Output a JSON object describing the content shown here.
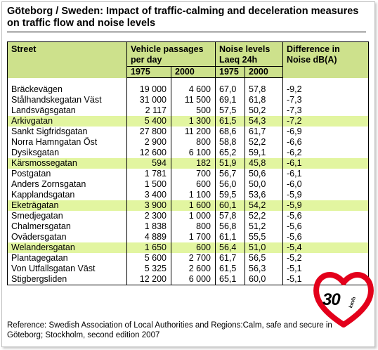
{
  "title": "Göteborg / Sweden: Impact of traffic-calming and deceleration measures on traffic flow and noise levels",
  "headers": {
    "street": "Street",
    "vehicle_passages": "Vehicle passages per day",
    "noise_levels": "Noise levels",
    "noise_sub": "Laeq  24h",
    "difference": "Difference in Noise dB(A)",
    "year_1975": "1975",
    "year_2000": "2000"
  },
  "rows": [
    {
      "street": "Bräckevägen",
      "v1975": "19 000",
      "v2000": "4 600",
      "n1975": "67,0",
      "n2000": "57,8",
      "diff": "-9,2",
      "highlight": false
    },
    {
      "street": "Stålhandskegatan Väst",
      "v1975": "31 000",
      "v2000": "11 500",
      "n1975": "69,1",
      "n2000": "61,8",
      "diff": "-7,3",
      "highlight": false
    },
    {
      "street": "Landsvägsgatan",
      "v1975": "2 117",
      "v2000": "500",
      "n1975": "57,5",
      "n2000": "50,2",
      "diff": "-7,3",
      "highlight": false
    },
    {
      "street": "Arkivgatan",
      "v1975": "5 400",
      "v2000": "1 300",
      "n1975": "61,5",
      "n2000": "54,3",
      "diff": "-7,2",
      "highlight": true
    },
    {
      "street": "Sankt Sigfridsgatan",
      "v1975": "27 800",
      "v2000": "11 200",
      "n1975": "68,6",
      "n2000": "61,7",
      "diff": "-6,9",
      "highlight": false
    },
    {
      "street": "Norra Hamngatan Öst",
      "v1975": "2 900",
      "v2000": "800",
      "n1975": "58,8",
      "n2000": "52,2",
      "diff": "-6,6",
      "highlight": false
    },
    {
      "street": "Dysiksgatan",
      "v1975": "12 600",
      "v2000": "6 100",
      "n1975": "65,2",
      "n2000": "59,1",
      "diff": "-6,2",
      "highlight": false
    },
    {
      "street": "Kärsmossegatan",
      "v1975": "594",
      "v2000": "182",
      "n1975": "51,9",
      "n2000": "45,8",
      "diff": "-6,1",
      "highlight": true
    },
    {
      "street": "Postgatan",
      "v1975": "1 781",
      "v2000": "700",
      "n1975": "56,7",
      "n2000": "50,6",
      "diff": "-6,1",
      "highlight": false
    },
    {
      "street": "Anders Zornsgatan",
      "v1975": "1 500",
      "v2000": "600",
      "n1975": "56,0",
      "n2000": "50,0",
      "diff": "-6,0",
      "highlight": false
    },
    {
      "street": "Kapplandsgatan",
      "v1975": "3 400",
      "v2000": "1 100",
      "n1975": "59,5",
      "n2000": "53,6",
      "diff": "-5,9",
      "highlight": false
    },
    {
      "street": "Eketrägatan",
      "v1975": "3 900",
      "v2000": "1 600",
      "n1975": "60,1",
      "n2000": "54,2",
      "diff": "-5,9",
      "highlight": true
    },
    {
      "street": "Smedjegatan",
      "v1975": "2 300",
      "v2000": "1 000",
      "n1975": "57,8",
      "n2000": "52,2",
      "diff": "-5,6",
      "highlight": false
    },
    {
      "street": "Chalmersgatan",
      "v1975": "1 838",
      "v2000": "800",
      "n1975": "56,8",
      "n2000": "51,2",
      "diff": "-5,6",
      "highlight": false
    },
    {
      "street": "Ovädersgatan",
      "v1975": "4 889",
      "v2000": "1 700",
      "n1975": "61,1",
      "n2000": "55,5",
      "diff": "-5,6",
      "highlight": false
    },
    {
      "street": "Welandersgatan",
      "v1975": "1 650",
      "v2000": "600",
      "n1975": "56,4",
      "n2000": "51,0",
      "diff": "-5,4",
      "highlight": true
    },
    {
      "street": "Plantagegatan",
      "v1975": "5 600",
      "v2000": "2 700",
      "n1975": "61,7",
      "n2000": "56,5",
      "diff": "-5,2",
      "highlight": false
    },
    {
      "street": "Von Utfallsgatan Väst",
      "v1975": "5 325",
      "v2000": "2 600",
      "n1975": "61,5",
      "n2000": "56,3",
      "diff": "-5,1",
      "highlight": false
    },
    {
      "street": "Stigbergsliden",
      "v1975": "12 200",
      "v2000": "6 000",
      "n1975": "65,1",
      "n2000": "60,0",
      "diff": "-5,1",
      "highlight": false
    }
  ],
  "reference": "Reference: Swedish Association of Local Authorities and Regions:Calm, safe and secure in Göteborg; Stockholm, second edition 2007",
  "badge": {
    "speed": "30",
    "unit": "km/h",
    "icon": "heart-speed-limit-icon",
    "color": "#e3001b"
  },
  "colors": {
    "header_bg": "#cde18c",
    "highlight_bg": "#e2f5a0"
  }
}
